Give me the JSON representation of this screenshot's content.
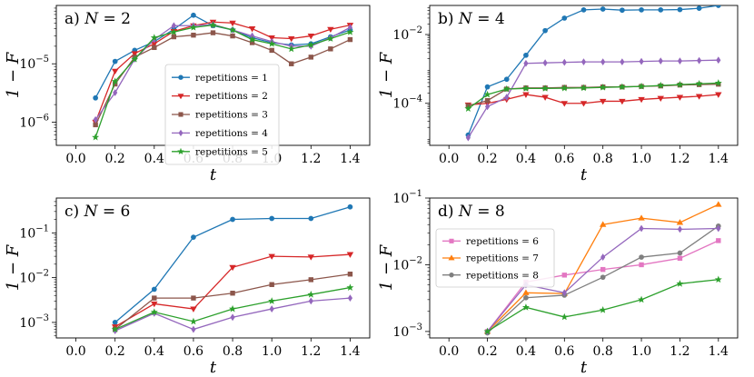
{
  "chart_data": [
    {
      "type": "line",
      "title": "a) N = 2",
      "title_prefix": "a)",
      "title_var": "N",
      "title_rest": " = 2",
      "xlabel": "t",
      "ylabel": "1 − F",
      "yscale": "log",
      "xlim": [
        -0.1,
        1.5
      ],
      "ylim": [
        4e-07,
        0.0001
      ],
      "xticks": [
        0.0,
        0.2,
        0.4,
        0.6,
        0.8,
        1.0,
        1.2,
        1.4
      ],
      "xtick_labels": [
        "0.0",
        "0.2",
        "0.4",
        "0.6",
        "0.8",
        "1.0",
        "1.2",
        "1.4"
      ],
      "yticks": [
        {
          "value": 1e-06,
          "base": "10",
          "exp": "−6"
        },
        {
          "value": 1e-05,
          "base": "10",
          "exp": "−5"
        }
      ],
      "legend": "center-right",
      "x": [
        0.1,
        0.2,
        0.3,
        0.4,
        0.5,
        0.6,
        0.7,
        0.8,
        0.9,
        1.0,
        1.1,
        1.2,
        1.3,
        1.4
      ],
      "series": [
        {
          "name": "repetitions = 1",
          "color": "#1f77b4",
          "marker": "circle",
          "values": [
            2.6e-06,
            1.1e-05,
            1.7e-05,
            2.4e-05,
            3.9e-05,
            6.8e-05,
            4.5e-05,
            3.8e-05,
            2.8e-05,
            2.3e-05,
            2.1e-05,
            2.2e-05,
            2.9e-05,
            3.8e-05
          ]
        },
        {
          "name": "repetitions = 2",
          "color": "#d62728",
          "marker": "triangle-down",
          "values": [
            1e-06,
            7.5e-06,
            1.5e-05,
            2.2e-05,
            3.6e-05,
            4.5e-05,
            5.2e-05,
            5e-05,
            4e-05,
            2.8e-05,
            2.7e-05,
            3e-05,
            3.9e-05,
            4.6e-05
          ]
        },
        {
          "name": "repetitions = 3",
          "color": "#8c564b",
          "marker": "square",
          "values": [
            9e-07,
            4.5e-06,
            1.3e-05,
            1.9e-05,
            2.9e-05,
            3.1e-05,
            3.4e-05,
            3e-05,
            2.3e-05,
            1.7e-05,
            1e-05,
            1.3e-05,
            1.8e-05,
            2.6e-05
          ]
        },
        {
          "name": "repetitions = 4",
          "color": "#9467bd",
          "marker": "diamond",
          "values": [
            1.1e-06,
            3.2e-06,
            1.2e-05,
            2.6e-05,
            4.5e-05,
            4.5e-05,
            4.7e-05,
            3.8e-05,
            3e-05,
            2.4e-05,
            2e-05,
            2e-05,
            2.8e-05,
            4.2e-05
          ]
        },
        {
          "name": "repetitions = 5",
          "color": "#2ca02c",
          "marker": "star",
          "values": [
            5.5e-07,
            5e-06,
            1.2e-05,
            2.8e-05,
            3.5e-05,
            4.2e-05,
            4.6e-05,
            3.8e-05,
            2.6e-05,
            2.2e-05,
            1.8e-05,
            2.1e-05,
            2.7e-05,
            3.5e-05
          ]
        }
      ]
    },
    {
      "type": "line",
      "title": "b) N = 4",
      "title_prefix": "b)",
      "title_var": "N",
      "title_rest": " = 4",
      "xlabel": "t",
      "ylabel": "1 − F",
      "yscale": "log",
      "xlim": [
        -0.1,
        1.5
      ],
      "ylim": [
        6e-06,
        0.07
      ],
      "xticks": [
        0.0,
        0.2,
        0.4,
        0.6,
        0.8,
        1.0,
        1.2,
        1.4
      ],
      "xtick_labels": [
        "0.0",
        "0.2",
        "0.4",
        "0.6",
        "0.8",
        "1.0",
        "1.2",
        "1.4"
      ],
      "yticks": [
        {
          "value": 0.0001,
          "base": "10",
          "exp": "−4"
        },
        {
          "value": 0.01,
          "base": "10",
          "exp": "−2"
        }
      ],
      "x": [
        0.1,
        0.2,
        0.3,
        0.4,
        0.5,
        0.6,
        0.7,
        0.8,
        0.9,
        1.0,
        1.1,
        1.2,
        1.3,
        1.4
      ],
      "series": [
        {
          "name": "repetitions = 1",
          "color": "#1f77b4",
          "marker": "circle",
          "values": [
            1.2e-05,
            0.0003,
            0.0005,
            0.0025,
            0.013,
            0.03,
            0.052,
            0.055,
            0.051,
            0.052,
            0.052,
            0.053,
            0.058,
            0.07
          ]
        },
        {
          "name": "repetitions = 2",
          "color": "#d62728",
          "marker": "triangle-down",
          "values": [
            9e-05,
            0.0001,
            0.00013,
            0.00018,
            0.00015,
            0.0001,
            0.0001,
            0.000115,
            0.000115,
            0.00013,
            0.00014,
            0.00015,
            0.00016,
            0.00018
          ]
        },
        {
          "name": "repetitions = 3",
          "color": "#8c564b",
          "marker": "square",
          "values": [
            8.5e-05,
            0.00012,
            0.00026,
            0.00028,
            0.00028,
            0.00029,
            0.00029,
            0.0003,
            0.0003,
            0.00031,
            0.00032,
            0.00034,
            0.00035,
            0.00036
          ]
        },
        {
          "name": "repetitions = 4",
          "color": "#9467bd",
          "marker": "diamond",
          "values": [
            1e-05,
            8e-05,
            0.00015,
            0.00145,
            0.0015,
            0.00155,
            0.0016,
            0.0016,
            0.0016,
            0.00165,
            0.0017,
            0.0017,
            0.00175,
            0.0018
          ]
        },
        {
          "name": "repetitions = 5",
          "color": "#2ca02c",
          "marker": "star",
          "values": [
            7e-05,
            0.00018,
            0.00026,
            0.00027,
            0.00027,
            0.000275,
            0.00028,
            0.00029,
            0.0003,
            0.00031,
            0.00033,
            0.00035,
            0.00037,
            0.00039
          ]
        }
      ]
    },
    {
      "type": "line",
      "title": "c) N = 6",
      "title_prefix": "c)",
      "title_var": "N",
      "title_rest": " = 6",
      "xlabel": "t",
      "ylabel": "1 − F",
      "yscale": "log",
      "xlim": [
        -0.1,
        1.5
      ],
      "ylim": [
        0.00045,
        0.6
      ],
      "xticks": [
        0.0,
        0.2,
        0.4,
        0.6,
        0.8,
        1.0,
        1.2,
        1.4
      ],
      "xtick_labels": [
        "0.0",
        "0.2",
        "0.4",
        "0.6",
        "0.8",
        "1.0",
        "1.2",
        "1.4"
      ],
      "yticks": [
        {
          "value": 0.001,
          "base": "10",
          "exp": "−3"
        },
        {
          "value": 0.01,
          "base": "10",
          "exp": "−2"
        },
        {
          "value": 0.1,
          "base": "10",
          "exp": "−1"
        }
      ],
      "x": [
        0.2,
        0.4,
        0.6,
        0.8,
        1.0,
        1.2,
        1.4
      ],
      "series": [
        {
          "name": "repetitions = 1",
          "color": "#1f77b4",
          "marker": "circle",
          "values": [
            0.001,
            0.0055,
            0.08,
            0.2,
            0.21,
            0.21,
            0.38
          ]
        },
        {
          "name": "repetitions = 2",
          "color": "#d62728",
          "marker": "triangle-down",
          "values": [
            0.0008,
            0.0026,
            0.002,
            0.017,
            0.03,
            0.029,
            0.033
          ]
        },
        {
          "name": "repetitions = 3",
          "color": "#8c564b",
          "marker": "square",
          "values": [
            0.0007,
            0.0035,
            0.0035,
            0.0045,
            0.007,
            0.009,
            0.012
          ]
        },
        {
          "name": "repetitions = 4",
          "color": "#9467bd",
          "marker": "diamond",
          "values": [
            0.00065,
            0.0016,
            0.0007,
            0.0013,
            0.002,
            0.003,
            0.0035
          ]
        },
        {
          "name": "repetitions = 5",
          "color": "#2ca02c",
          "marker": "star",
          "values": [
            0.0007,
            0.0017,
            0.00105,
            0.002,
            0.003,
            0.0042,
            0.006
          ]
        }
      ]
    },
    {
      "type": "line",
      "title": "d) N = 8",
      "title_prefix": "d)",
      "title_var": "N",
      "title_rest": " = 8",
      "xlabel": "t",
      "ylabel": "1 − F",
      "yscale": "log",
      "xlim": [
        -0.1,
        1.5
      ],
      "ylim": [
        0.0008,
        0.1
      ],
      "xticks": [
        0.0,
        0.2,
        0.4,
        0.6,
        0.8,
        1.0,
        1.2,
        1.4
      ],
      "xtick_labels": [
        "0.0",
        "0.2",
        "0.4",
        "0.6",
        "0.8",
        "1.0",
        "1.2",
        "1.4"
      ],
      "yticks": [
        {
          "value": 0.001,
          "base": "10",
          "exp": "−3"
        },
        {
          "value": 0.01,
          "base": "10",
          "exp": "−2"
        },
        {
          "value": 0.1,
          "base": "10",
          "exp": "−1"
        }
      ],
      "legend": "left",
      "x": [
        0.2,
        0.4,
        0.6,
        0.8,
        1.0,
        1.2,
        1.4
      ],
      "series": [
        {
          "name": "repetitions = 6",
          "color": "#e377c2",
          "marker": "square",
          "in_legend": true,
          "values": [
            0.001,
            0.0055,
            0.007,
            0.0085,
            0.01,
            0.0125,
            0.023
          ]
        },
        {
          "name": "repetitions = 7",
          "color": "#ff7f0e",
          "marker": "triangle-up",
          "in_legend": true,
          "values": [
            0.001,
            0.0038,
            0.0037,
            0.04,
            0.05,
            0.043,
            0.08
          ]
        },
        {
          "name": "repetitions = 8",
          "color": "#7f7f7f",
          "marker": "circle",
          "in_legend": true,
          "values": [
            0.00095,
            0.0032,
            0.0035,
            0.0065,
            0.013,
            0.015,
            0.038
          ]
        },
        {
          "color": "#9467bd",
          "marker": "diamond",
          "in_legend": false,
          "values": [
            0.001,
            0.005,
            0.0038,
            0.013,
            0.035,
            0.034,
            0.035
          ]
        },
        {
          "color": "#2ca02c",
          "marker": "star",
          "in_legend": false,
          "values": [
            0.001,
            0.0023,
            0.00165,
            0.0021,
            0.003,
            0.0052,
            0.006
          ]
        }
      ]
    }
  ]
}
